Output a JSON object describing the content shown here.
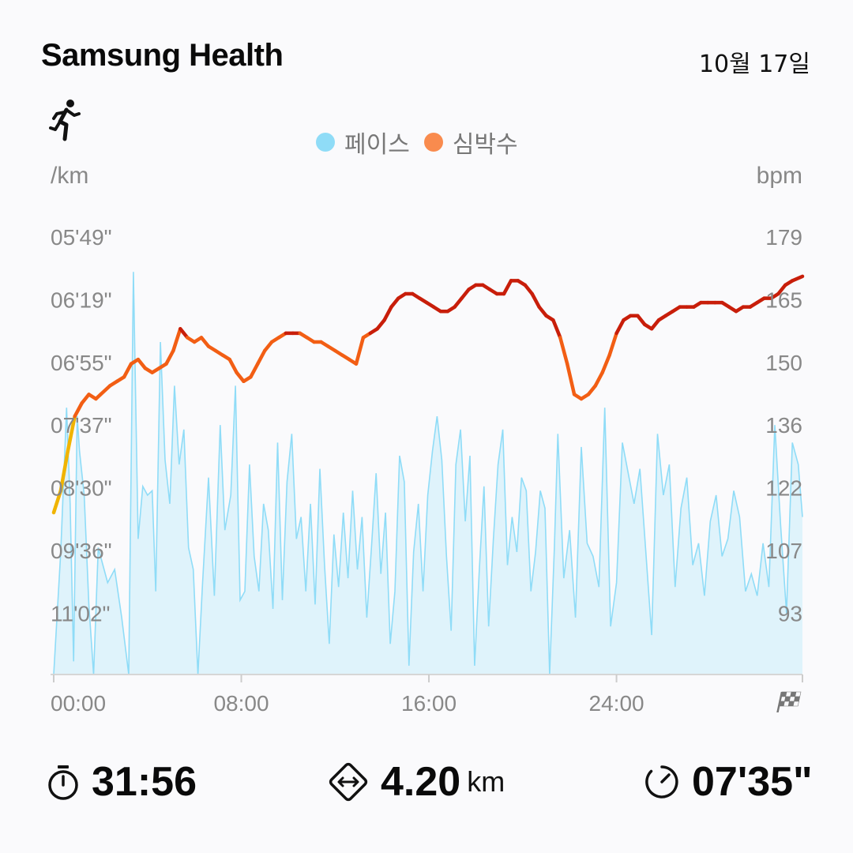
{
  "header": {
    "app_title": "Samsung Health",
    "date": "10월 17일",
    "activity_icon": "running-icon"
  },
  "colors": {
    "pace": "#8fdcf7",
    "pace_fill": "#dff3fb",
    "heart_rate_low": "#f0b400",
    "heart_rate_mid": "#f25e14",
    "heart_rate_high": "#c81e0a",
    "axis_text": "#888888"
  },
  "chart_data": {
    "type": "area+line",
    "legend": [
      {
        "name": "페이스",
        "color": "#8fdcf7"
      },
      {
        "name": "심박수",
        "color": "#f98b4e"
      }
    ],
    "x_axis": {
      "ticks": [
        "00:00",
        "08:00",
        "16:00",
        "24:00"
      ],
      "tick_minutes": [
        0,
        8,
        16,
        24
      ],
      "range_minutes": [
        0,
        31.93
      ],
      "end_marker": "finish-flag-icon"
    },
    "left_axis": {
      "unit": "/km",
      "ticks": [
        "05'49\"",
        "06'19\"",
        "06'55\"",
        "07'37\"",
        "08'30\"",
        "09'36\"",
        "11'02\""
      ]
    },
    "right_axis": {
      "unit": "bpm",
      "ticks": [
        179,
        165,
        150,
        136,
        122,
        107,
        93
      ],
      "range": [
        79,
        179
      ]
    },
    "series": [
      {
        "name": "심박수",
        "unit": "bpm",
        "x_minutes": [
          0,
          0.3,
          0.6,
          0.9,
          1.2,
          1.5,
          1.8,
          2.0,
          2.4,
          2.7,
          3.0,
          3.3,
          3.6,
          3.9,
          4.2,
          4.5,
          4.8,
          5.1,
          5.4,
          5.7,
          6.0,
          6.3,
          6.6,
          6.9,
          7.2,
          7.5,
          7.8,
          8.1,
          8.4,
          8.7,
          9.0,
          9.3,
          9.6,
          9.9,
          10.2,
          10.5,
          10.8,
          11.1,
          11.4,
          11.7,
          12.0,
          12.3,
          12.6,
          12.9,
          13.2,
          13.5,
          13.8,
          14.1,
          14.4,
          14.7,
          15.0,
          15.3,
          15.6,
          15.9,
          16.2,
          16.5,
          16.8,
          17.1,
          17.4,
          17.7,
          18.0,
          18.3,
          18.6,
          18.9,
          19.2,
          19.5,
          19.8,
          20.1,
          20.4,
          20.7,
          21.0,
          21.3,
          21.6,
          21.9,
          22.2,
          22.5,
          22.8,
          23.1,
          23.4,
          23.7,
          24.0,
          24.3,
          24.6,
          24.9,
          25.2,
          25.5,
          25.8,
          26.1,
          26.4,
          26.7,
          27.0,
          27.3,
          27.6,
          27.9,
          28.2,
          28.5,
          28.8,
          29.1,
          29.4,
          29.7,
          30.0,
          30.3,
          30.6,
          30.9,
          31.2,
          31.5,
          31.93
        ],
        "values": [
          116,
          121,
          130,
          138,
          141,
          143,
          142,
          143,
          145,
          146,
          147,
          150,
          151,
          149,
          148,
          149,
          150,
          153,
          158,
          156,
          155,
          156,
          154,
          153,
          152,
          151,
          148,
          146,
          147,
          150,
          153,
          155,
          156,
          157,
          157,
          157,
          156,
          155,
          155,
          154,
          153,
          152,
          151,
          150,
          156,
          157,
          158,
          160,
          163,
          165,
          166,
          166,
          165,
          164,
          163,
          162,
          162,
          163,
          165,
          167,
          168,
          168,
          167,
          166,
          166,
          169,
          169,
          168,
          166,
          163,
          161,
          160,
          156,
          150,
          143,
          142,
          143,
          145,
          148,
          152,
          157,
          160,
          161,
          161,
          159,
          158,
          160,
          161,
          162,
          163,
          163,
          163,
          164,
          164,
          164,
          164,
          163,
          162,
          163,
          163,
          164,
          165,
          165,
          166,
          168,
          169,
          170
        ]
      },
      {
        "name": "페이스",
        "unit": "bpm-scale",
        "x_minutes": [
          0.0,
          0.3,
          0.55,
          0.7,
          0.85,
          1.0,
          1.1,
          1.3,
          1.5,
          1.7,
          1.9,
          2.1,
          2.3,
          2.6,
          2.9,
          3.2,
          3.4,
          3.6,
          3.8,
          4.0,
          4.2,
          4.35,
          4.55,
          4.75,
          4.95,
          5.15,
          5.35,
          5.55,
          5.75,
          5.95,
          6.15,
          6.35,
          6.6,
          6.85,
          7.1,
          7.3,
          7.55,
          7.75,
          7.95,
          8.15,
          8.35,
          8.55,
          8.75,
          8.95,
          9.15,
          9.35,
          9.55,
          9.75,
          9.95,
          10.15,
          10.35,
          10.55,
          10.75,
          10.95,
          11.15,
          11.35,
          11.55,
          11.75,
          11.95,
          12.15,
          12.35,
          12.55,
          12.75,
          12.95,
          13.15,
          13.35,
          13.55,
          13.75,
          13.95,
          14.15,
          14.35,
          14.55,
          14.75,
          14.95,
          15.15,
          15.35,
          15.55,
          15.75,
          15.95,
          16.15,
          16.35,
          16.55,
          16.75,
          16.95,
          17.15,
          17.35,
          17.55,
          17.75,
          17.95,
          18.15,
          18.35,
          18.55,
          18.75,
          18.95,
          19.15,
          19.35,
          19.55,
          19.75,
          19.95,
          20.15,
          20.35,
          20.55,
          20.75,
          20.95,
          21.15,
          21.35,
          21.5,
          21.75,
          22.0,
          22.25,
          22.5,
          22.75,
          23.0,
          23.25,
          23.5,
          23.75,
          24.0,
          24.25,
          24.5,
          24.75,
          25.0,
          25.25,
          25.5,
          25.75,
          26.0,
          26.25,
          26.5,
          26.75,
          27.0,
          27.25,
          27.5,
          27.75,
          28.0,
          28.25,
          28.5,
          28.75,
          29.0,
          29.25,
          29.5,
          29.75,
          30.0,
          30.25,
          30.5,
          30.75,
          31.0,
          31.25,
          31.5,
          31.75,
          31.93
        ],
        "values": [
          79,
          107,
          140,
          118,
          82,
          138,
          130,
          120,
          95,
          79,
          108,
          104,
          100,
          103,
          92,
          79,
          171,
          110,
          122,
          120,
          121,
          98,
          155,
          128,
          118,
          145,
          127,
          135,
          108,
          103,
          79,
          100,
          124,
          97,
          136,
          112,
          120,
          145,
          96,
          98,
          127,
          106,
          98,
          118,
          112,
          94,
          132,
          96,
          123,
          134,
          110,
          115,
          98,
          118,
          95,
          126,
          104,
          86,
          111,
          99,
          116,
          101,
          121,
          103,
          115,
          92,
          108,
          125,
          102,
          116,
          86,
          98,
          129,
          123,
          81,
          107,
          118,
          98,
          120,
          130,
          138,
          128,
          106,
          89,
          127,
          135,
          114,
          129,
          81,
          103,
          122,
          90,
          110,
          127,
          135,
          104,
          115,
          107,
          124,
          121,
          98,
          107,
          121,
          117,
          79,
          108,
          134,
          101,
          112,
          92,
          131,
          109,
          106,
          99,
          140,
          90,
          100,
          132,
          125,
          118,
          126,
          107,
          88,
          134,
          120,
          127,
          99,
          117,
          124,
          104,
          109,
          97,
          114,
          120,
          106,
          110,
          121,
          115,
          98,
          102,
          97,
          109,
          99,
          136,
          113,
          93,
          132,
          127,
          115
        ]
      }
    ]
  },
  "stats": {
    "duration": {
      "icon": "stopwatch-icon",
      "value": "31:56"
    },
    "distance": {
      "icon": "distance-icon",
      "value": "4.20",
      "unit": "km"
    },
    "avg_pace": {
      "icon": "pace-gauge-icon",
      "value": "07'35\""
    }
  }
}
